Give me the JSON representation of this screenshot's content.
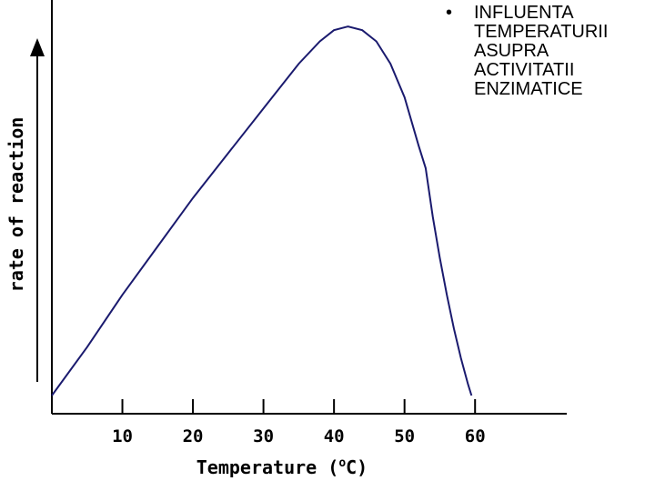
{
  "chart_data": {
    "type": "line",
    "title": "",
    "xlabel": "Temperature (",
    "xlabel_degree": "o",
    "xlabel_unit": "C)",
    "ylabel": "rate of reaction",
    "xlim": [
      0,
      73
    ],
    "ylim": [
      0,
      100
    ],
    "xticks": [
      10,
      20,
      30,
      40,
      50,
      60
    ],
    "grid": false,
    "legend": "none",
    "line_color": "#1a1a6e",
    "series": [
      {
        "x": [
          0,
          5,
          10,
          15,
          20,
          25,
          30,
          35,
          38,
          40,
          42,
          44,
          46,
          48,
          50,
          52,
          53,
          54,
          55,
          56,
          57,
          58,
          59,
          59.5
        ],
        "y": [
          0,
          13,
          27,
          40,
          53,
          65,
          77,
          89,
          95,
          98,
          99,
          98,
          95,
          89,
          80,
          67,
          61,
          48,
          37,
          27,
          18,
          10,
          3,
          0
        ]
      }
    ]
  },
  "note": {
    "bullet": "•",
    "lines": [
      "INFLUENTA",
      "TEMPERATURII",
      "ASUPRA",
      "ACTIVITATII",
      "ENZIMATICE"
    ]
  }
}
